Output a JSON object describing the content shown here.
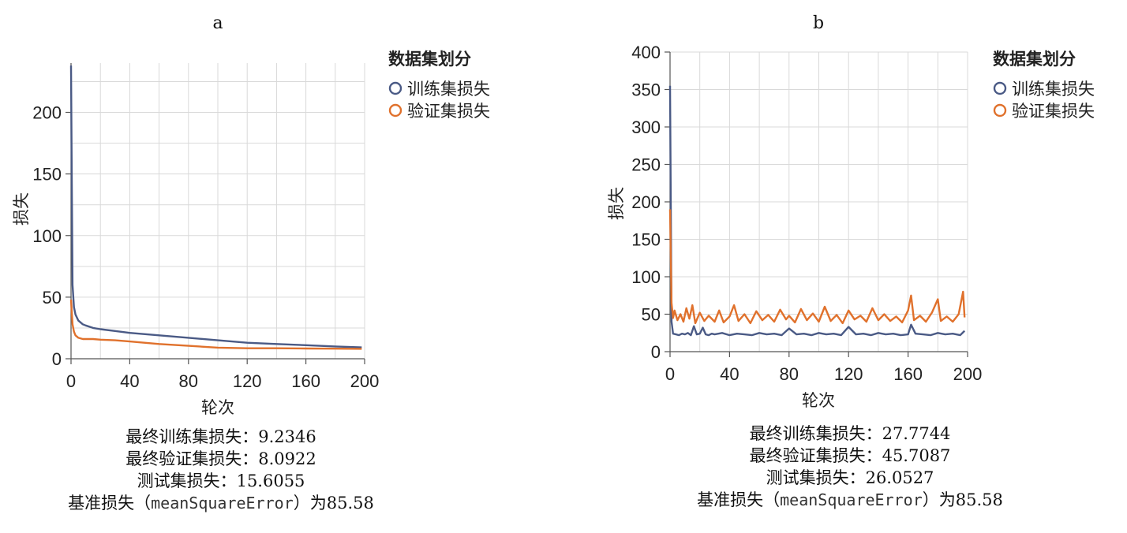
{
  "chart_data": [
    {
      "id": "a",
      "type": "line",
      "panel_label": "a",
      "xlabel": "轮次",
      "ylabel": "损失",
      "xlim": [
        0,
        200
      ],
      "ylim": [
        0,
        240
      ],
      "xticks": [
        0,
        40,
        80,
        120,
        160,
        200
      ],
      "yticks": [
        0,
        50,
        100,
        150,
        200
      ],
      "grid": true,
      "legend_title": "数据集划分",
      "legend_position": "top-right-outside",
      "series": [
        {
          "name": "训练集损失",
          "color": "#4a5a85",
          "x": [
            0,
            0.5,
            1,
            2,
            3,
            5,
            8,
            10,
            15,
            20,
            30,
            40,
            60,
            80,
            100,
            120,
            140,
            160,
            180,
            198
          ],
          "y": [
            238,
            150,
            60,
            42,
            36,
            31,
            28,
            27,
            25,
            24,
            22.5,
            21,
            19,
            17,
            15,
            13,
            12,
            11,
            10,
            9.2346
          ]
        },
        {
          "name": "验证集损失",
          "color": "#e0712c",
          "x": [
            0,
            1,
            2,
            3,
            5,
            8,
            10,
            15,
            20,
            30,
            40,
            60,
            80,
            100,
            120,
            140,
            160,
            180,
            198
          ],
          "y": [
            48,
            28,
            22,
            19,
            17,
            16,
            16,
            16,
            15.5,
            15,
            14,
            12,
            10.5,
            9,
            8.5,
            8.5,
            8.3,
            8.2,
            8.0922
          ]
        }
      ]
    },
    {
      "id": "b",
      "type": "line",
      "panel_label": "b",
      "xlabel": "轮次",
      "ylabel": "损失",
      "xlim": [
        0,
        200
      ],
      "ylim": [
        0,
        400
      ],
      "xticks": [
        0,
        40,
        80,
        120,
        160,
        200
      ],
      "yticks": [
        0,
        50,
        100,
        150,
        200,
        250,
        300,
        350,
        400
      ],
      "grid": true,
      "legend_title": "数据集划分",
      "legend_position": "top-right-outside",
      "series": [
        {
          "name": "训练集损失",
          "color": "#4a5a85",
          "x": [
            0,
            1,
            2,
            4,
            6,
            8,
            10,
            12,
            14,
            16,
            18,
            20,
            22,
            24,
            26,
            28,
            30,
            35,
            40,
            45,
            50,
            55,
            60,
            65,
            70,
            75,
            80,
            85,
            90,
            95,
            100,
            105,
            110,
            115,
            120,
            125,
            130,
            135,
            140,
            145,
            150,
            155,
            160,
            162,
            165,
            170,
            175,
            180,
            185,
            190,
            195,
            198
          ],
          "y": [
            355,
            40,
            24,
            23,
            22,
            24,
            23,
            25,
            22,
            34,
            23,
            24,
            32,
            23,
            22,
            24,
            23,
            25,
            22,
            24,
            23,
            22,
            25,
            23,
            24,
            22,
            31,
            23,
            24,
            22,
            25,
            23,
            24,
            22,
            33,
            23,
            24,
            22,
            25,
            23,
            24,
            22,
            23,
            36,
            24,
            23,
            22,
            25,
            23,
            24,
            22,
            27.7744
          ]
        },
        {
          "name": "验证集损失",
          "color": "#e0712c",
          "x": [
            0,
            1,
            2,
            3,
            5,
            7,
            9,
            11,
            13,
            15,
            17,
            20,
            23,
            26,
            30,
            33,
            36,
            40,
            43,
            46,
            50,
            54,
            58,
            62,
            66,
            70,
            74,
            78,
            80,
            84,
            88,
            92,
            96,
            100,
            104,
            108,
            112,
            116,
            120,
            124,
            128,
            132,
            136,
            140,
            144,
            148,
            152,
            156,
            160,
            162,
            164,
            168,
            172,
            176,
            180,
            182,
            186,
            190,
            194,
            197,
            198
          ],
          "y": [
            190,
            65,
            45,
            55,
            42,
            50,
            40,
            58,
            44,
            62,
            38,
            52,
            41,
            48,
            40,
            55,
            39,
            47,
            62,
            41,
            50,
            38,
            54,
            42,
            49,
            40,
            56,
            43,
            48,
            39,
            57,
            42,
            51,
            40,
            60,
            41,
            49,
            38,
            55,
            43,
            48,
            40,
            58,
            42,
            50,
            41,
            47,
            39,
            55,
            75,
            42,
            48,
            40,
            52,
            70,
            41,
            47,
            40,
            50,
            80,
            45.7087
          ]
        }
      ]
    }
  ],
  "captions": [
    {
      "line1": "最终训练集损失：9.2346",
      "line2": "最终验证集损失：8.0922",
      "line3": "测试集损失：15.6055",
      "line4_pre": "基准损失（",
      "line4_mono": "meanSquareError",
      "line4_post": "）为85.58"
    },
    {
      "line1": "最终训练集损失：27.7744",
      "line2": "最终验证集损失：45.7087",
      "line3": "测试集损失：26.0527",
      "line4_pre": "基准损失（",
      "line4_mono": "meanSquareError",
      "line4_post": "）为85.58"
    }
  ]
}
